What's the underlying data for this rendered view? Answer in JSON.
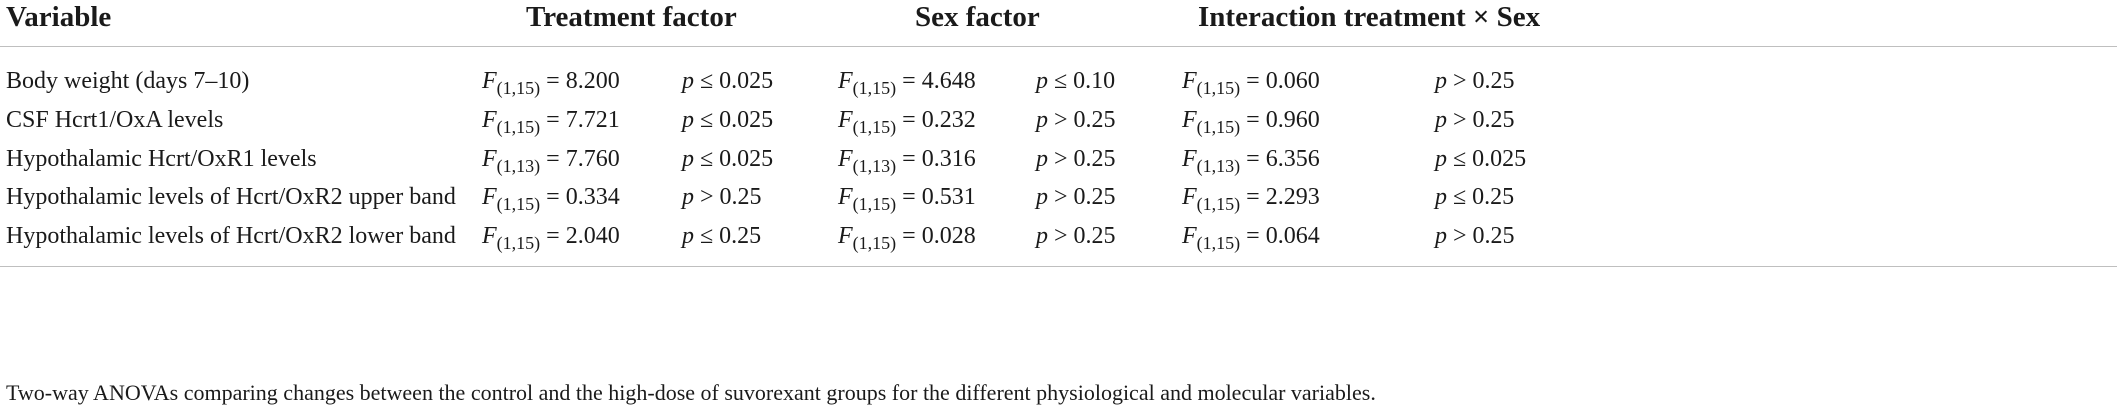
{
  "headers": {
    "variable": "Variable",
    "treatment": "Treatment factor",
    "sex": "Sex factor",
    "interaction": "Interaction treatment × Sex"
  },
  "rows": [
    {
      "label": "Body weight (days 7–10)",
      "cells": [
        {
          "f_sym": "F",
          "df": "(1,15)",
          "f_val": " = 8.200",
          "p_sym": "p",
          "p_val": " ≤ 0.025"
        },
        {
          "f_sym": "F",
          "df": "(1,15)",
          "f_val": " = 4.648",
          "p_sym": "p",
          "p_val": " ≤ 0.10"
        },
        {
          "f_sym": "F",
          "df": "(1,15)",
          "f_val": " = 0.060",
          "p_sym": "p",
          "p_val": " > 0.25"
        }
      ]
    },
    {
      "label": "CSF Hcrt1/OxA levels",
      "cells": [
        {
          "f_sym": "F",
          "df": "(1,15)",
          "f_val": " = 7.721",
          "p_sym": "p",
          "p_val": " ≤ 0.025"
        },
        {
          "f_sym": "F",
          "df": "(1,15)",
          "f_val": " = 0.232",
          "p_sym": "p",
          "p_val": " > 0.25"
        },
        {
          "f_sym": "F",
          "df": "(1,15)",
          "f_val": " = 0.960",
          "p_sym": "p",
          "p_val": " > 0.25"
        }
      ]
    },
    {
      "label": "Hypothalamic Hcrt/OxR1 levels",
      "cells": [
        {
          "f_sym": "F",
          "df": "(1,13)",
          "f_val": " = 7.760",
          "p_sym": "p",
          "p_val": " ≤ 0.025"
        },
        {
          "f_sym": "F",
          "df": "(1,13)",
          "f_val": " = 0.316",
          "p_sym": "p",
          "p_val": " > 0.25"
        },
        {
          "f_sym": "F",
          "df": "(1,13)",
          "f_val": " = 6.356",
          "p_sym": "p",
          "p_val": " ≤ 0.025"
        }
      ]
    },
    {
      "label": "Hypothalamic levels of Hcrt/OxR2 upper band",
      "cells": [
        {
          "f_sym": "F",
          "df": "(1,15)",
          "f_val": " = 0.334",
          "p_sym": "p",
          "p_val": " > 0.25"
        },
        {
          "f_sym": "F",
          "df": "(1,15)",
          "f_val": " = 0.531",
          "p_sym": "p",
          "p_val": " > 0.25"
        },
        {
          "f_sym": "F",
          "df": "(1,15)",
          "f_val": " = 2.293",
          "p_sym": "p",
          "p_val": " ≤ 0.25"
        }
      ]
    },
    {
      "label": "Hypothalamic levels of Hcrt/OxR2 lower band",
      "cells": [
        {
          "f_sym": "F",
          "df": "(1,15)",
          "f_val": " = 2.040",
          "p_sym": "p",
          "p_val": " ≤ 0.25"
        },
        {
          "f_sym": "F",
          "df": "(1,15)",
          "f_val": " = 0.028",
          "p_sym": "p",
          "p_val": " > 0.25"
        },
        {
          "f_sym": "F",
          "df": "(1,15)",
          "f_val": " = 0.064",
          "p_sym": "p",
          "p_val": " > 0.25"
        }
      ]
    }
  ],
  "footnote": "Two-way ANOVAs comparing changes between the control and the high-dose of suvorexant groups for the different physiological and molecular variables."
}
